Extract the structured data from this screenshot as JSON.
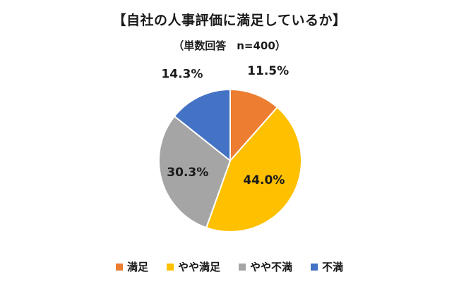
{
  "chart_data": {
    "type": "pie",
    "title": "【自社の人事評価に満足しているか】",
    "subtitle": "（単数回答　n=400）",
    "categories": [
      "満足",
      "やや満足",
      "やや不満",
      "不満"
    ],
    "values": [
      11.5,
      44.0,
      30.3,
      14.3
    ],
    "labels": [
      "11.5%",
      "44.0%",
      "30.3%",
      "14.3%"
    ],
    "colors": [
      "#ED7D31",
      "#FFC000",
      "#A5A5A5",
      "#4472C4"
    ],
    "start_angle": "12 o'clock",
    "direction": "clockwise",
    "legend_position": "bottom"
  }
}
